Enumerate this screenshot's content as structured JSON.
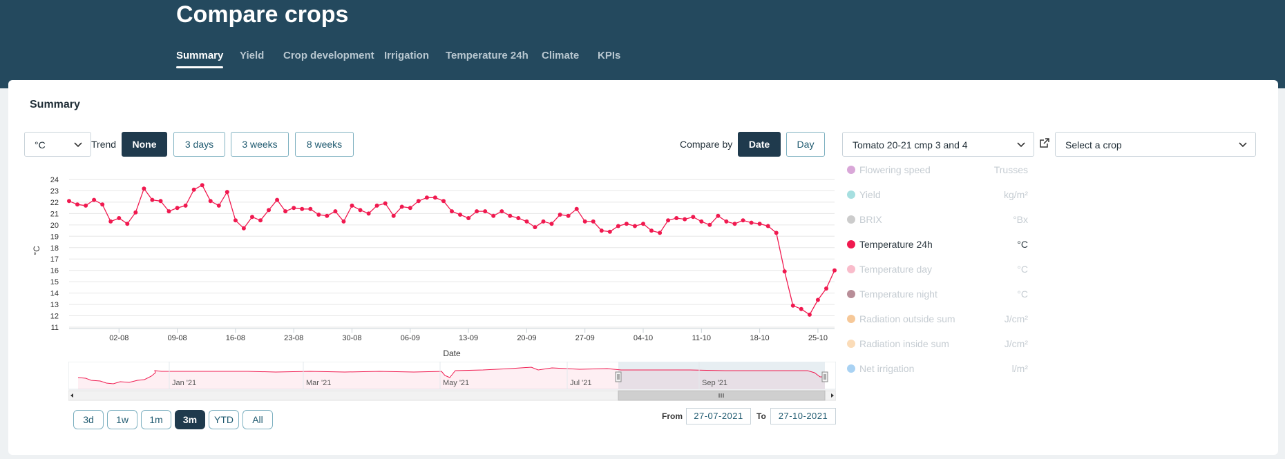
{
  "header": {
    "title": "Compare crops",
    "tabs": [
      {
        "label": "Summary",
        "active": true
      },
      {
        "label": "Yield",
        "active": false
      },
      {
        "label": "Crop development",
        "active": false
      },
      {
        "label": "Irrigation",
        "active": false
      },
      {
        "label": "Temperature 24h",
        "active": false
      },
      {
        "label": "Climate",
        "active": false
      },
      {
        "label": "KPIs",
        "active": false
      }
    ]
  },
  "summary": {
    "title": "Summary",
    "unit_select": "°C",
    "trend_label": "Trend",
    "trend_options": [
      "None",
      "3 days",
      "3 weeks",
      "8 weeks"
    ],
    "trend_selected": "None",
    "compare_by_label": "Compare by",
    "compare_options": [
      "Date",
      "Day"
    ],
    "compare_selected": "Date",
    "crop_select": "Tomato 20-21 cmp 3 and 4",
    "crop_select_2_placeholder": "Select a crop",
    "external_link_icon": "external-link-icon"
  },
  "legend": [
    {
      "name": "Flowering speed",
      "unit": "Trusses",
      "color": "#d9a7d8",
      "active": false
    },
    {
      "name": "Yield",
      "unit": "kg/m²",
      "color": "#a6dfe0",
      "active": false
    },
    {
      "name": "BRIX",
      "unit": "°Bx",
      "color": "#cccccc",
      "active": false
    },
    {
      "name": "Temperature 24h",
      "unit": "°C",
      "color": "#f0194f",
      "active": true
    },
    {
      "name": "Temperature day",
      "unit": "°C",
      "color": "#f9bccb",
      "active": false
    },
    {
      "name": "Temperature night",
      "unit": "°C",
      "color": "#b88e98",
      "active": false
    },
    {
      "name": "Radiation outside sum",
      "unit": "J/cm²",
      "color": "#f6c898",
      "active": false
    },
    {
      "name": "Radiation inside sum",
      "unit": "J/cm²",
      "color": "#fbdcb8",
      "active": false
    },
    {
      "name": "Net irrigation",
      "unit": "l/m²",
      "color": "#a9d2f3",
      "active": false
    }
  ],
  "range": {
    "buttons": [
      "3d",
      "1w",
      "1m",
      "3m",
      "YTD",
      "All"
    ],
    "selected": "3m",
    "from_label": "From",
    "from_value": "27-07-2021",
    "to_label": "To",
    "to_value": "27-10-2021",
    "navigator_labels": [
      "Jan '21",
      "Mar '21",
      "May '21",
      "Jul '21",
      "Sep '21"
    ]
  },
  "chart_data": {
    "type": "line",
    "xlabel": "Date",
    "ylabel": "°C",
    "ylim": [
      11,
      24
    ],
    "y_ticks": [
      11,
      12,
      13,
      14,
      15,
      16,
      17,
      18,
      19,
      20,
      21,
      22,
      23,
      24
    ],
    "x_tick_labels": [
      "02-08",
      "09-08",
      "16-08",
      "23-08",
      "30-08",
      "06-09",
      "13-09",
      "20-09",
      "27-09",
      "04-10",
      "11-10",
      "18-10",
      "25-10"
    ],
    "x_start": "27-07-2021",
    "x_end": "27-10-2021",
    "grid": true,
    "series": [
      {
        "name": "Temperature 24h",
        "color": "#f0194f",
        "values": [
          22.1,
          21.8,
          21.7,
          22.2,
          21.8,
          20.3,
          20.6,
          20.1,
          21.1,
          23.2,
          22.2,
          22.1,
          21.2,
          21.5,
          21.7,
          23.1,
          23.5,
          22.1,
          21.7,
          22.9,
          20.4,
          19.7,
          20.7,
          20.4,
          21.3,
          22.2,
          21.2,
          21.5,
          21.4,
          21.4,
          20.9,
          20.8,
          21.2,
          20.3,
          21.7,
          21.3,
          21.0,
          21.7,
          21.9,
          20.8,
          21.6,
          21.5,
          22.1,
          22.4,
          22.4,
          22.1,
          21.2,
          20.9,
          20.6,
          21.2,
          21.2,
          20.8,
          21.2,
          20.8,
          20.6,
          20.3,
          19.8,
          20.3,
          20.1,
          20.9,
          20.8,
          21.4,
          20.3,
          20.3,
          19.5,
          19.4,
          19.9,
          20.1,
          19.9,
          20.1,
          19.5,
          19.3,
          20.4,
          20.6,
          20.5,
          20.7,
          20.3,
          20.0,
          20.8,
          20.3,
          20.1,
          20.4,
          20.2,
          20.1,
          19.9,
          19.3,
          15.9,
          12.9,
          12.6,
          12.1,
          13.4,
          14.4,
          16.0
        ]
      }
    ]
  }
}
